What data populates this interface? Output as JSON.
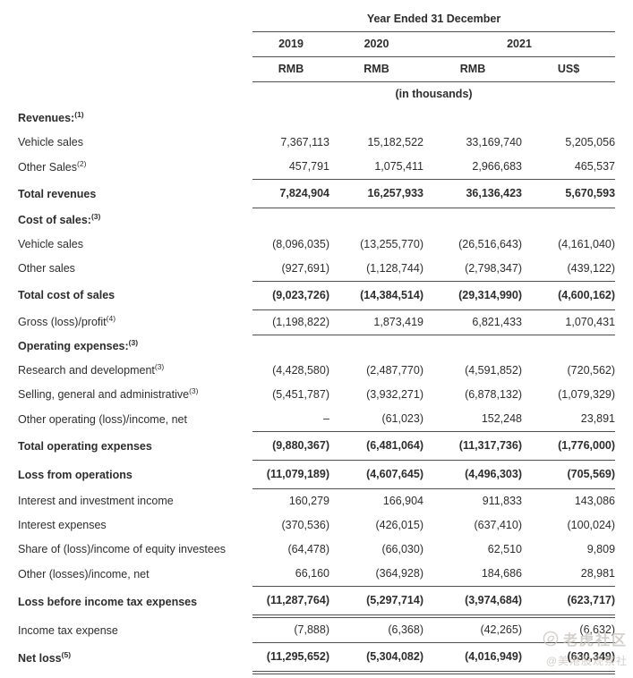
{
  "header": {
    "title": "Year Ended 31 December",
    "years": [
      "2019",
      "2020",
      "2021"
    ],
    "currencies": [
      "RMB",
      "RMB",
      "RMB",
      "US$"
    ],
    "unit_note": "(in thousands)"
  },
  "table": {
    "rows": [
      {
        "label": "Revenues:",
        "sup": "(1)",
        "section": true,
        "bold": true,
        "values": null
      },
      {
        "label": "Vehicle sales",
        "values": [
          "7,367,113",
          "15,182,522",
          "33,169,740",
          "5,205,056"
        ]
      },
      {
        "label": "Other Sales",
        "sup": "(2)",
        "values": [
          "457,791",
          "1,075,411",
          "2,966,683",
          "465,537"
        ]
      },
      {
        "label": "Total revenues",
        "bold": true,
        "total": true,
        "top": "s",
        "bottom": "s",
        "values": [
          "7,824,904",
          "16,257,933",
          "36,136,423",
          "5,670,593"
        ]
      },
      {
        "label": "Cost of sales:",
        "sup": "(3)",
        "section": true,
        "bold": true,
        "values": null
      },
      {
        "label": "Vehicle sales",
        "values": [
          "(8,096,035)",
          "(13,255,770)",
          "(26,516,643)",
          "(4,161,040)"
        ]
      },
      {
        "label": "Other sales",
        "values": [
          "(927,691)",
          "(1,128,744)",
          "(2,798,347)",
          "(439,122)"
        ]
      },
      {
        "label": "Total cost of sales",
        "bold": true,
        "total": true,
        "top": "s",
        "bottom": "s",
        "values": [
          "(9,023,726)",
          "(14,384,514)",
          "(29,314,990)",
          "(4,600,162)"
        ]
      },
      {
        "label": "Gross (loss)/profit",
        "sup": "(4)",
        "bottom": "s",
        "values": [
          "(1,198,822)",
          "1,873,419",
          "6,821,433",
          "1,070,431"
        ]
      },
      {
        "label": "Operating expenses:",
        "sup": "(3)",
        "section": true,
        "bold": true,
        "values": null
      },
      {
        "label": "Research and development",
        "sup": "(3)",
        "values": [
          "(4,428,580)",
          "(2,487,770)",
          "(4,591,852)",
          "(720,562)"
        ]
      },
      {
        "label": "Selling, general and administrative",
        "sup": "(3)",
        "values": [
          "(5,451,787)",
          "(3,932,271)",
          "(6,878,132)",
          "(1,079,329)"
        ]
      },
      {
        "label": "Other operating (loss)/income, net",
        "values": [
          "–",
          "(61,023)",
          "152,248",
          "23,891"
        ]
      },
      {
        "label": "Total operating expenses",
        "bold": true,
        "total": true,
        "top": "s",
        "bottom": "s",
        "values": [
          "(9,880,367)",
          "(6,481,064)",
          "(11,317,736)",
          "(1,776,000)"
        ]
      },
      {
        "label": "Loss from operations",
        "bold": true,
        "total": true,
        "bottom": "s",
        "values": [
          "(11,079,189)",
          "(4,607,645)",
          "(4,496,303)",
          "(705,569)"
        ]
      },
      {
        "label": "Interest and investment income",
        "values": [
          "160,279",
          "166,904",
          "911,833",
          "143,086"
        ]
      },
      {
        "label": "Interest expenses",
        "values": [
          "(370,536)",
          "(426,015)",
          "(637,410)",
          "(100,024)"
        ]
      },
      {
        "label": "Share of (loss)/income of equity investees",
        "values": [
          "(64,478)",
          "(66,030)",
          "62,510",
          "9,809"
        ]
      },
      {
        "label": "Other (losses)/income, net",
        "bottom": "s",
        "values": [
          "66,160",
          "(364,928)",
          "184,686",
          "28,981"
        ]
      },
      {
        "label": "Loss before income tax expenses",
        "bold": true,
        "total": true,
        "bottom": "d",
        "values": [
          "(11,287,764)",
          "(5,297,714)",
          "(3,974,684)",
          "(623,717)"
        ]
      },
      {
        "label": "Income tax expense",
        "bottom": "s",
        "values": [
          "(7,888)",
          "(6,368)",
          "(42,265)",
          "(6,632)"
        ]
      },
      {
        "label": "Net loss",
        "sup": "(5)",
        "bold": true,
        "total": true,
        "bottom": "d",
        "values": [
          "(11,295,652)",
          "(5,304,082)",
          "(4,016,949)",
          "(630,349)"
        ]
      }
    ]
  },
  "watermark": {
    "brand": "老虎社区",
    "handle": "@美港股观察社"
  }
}
